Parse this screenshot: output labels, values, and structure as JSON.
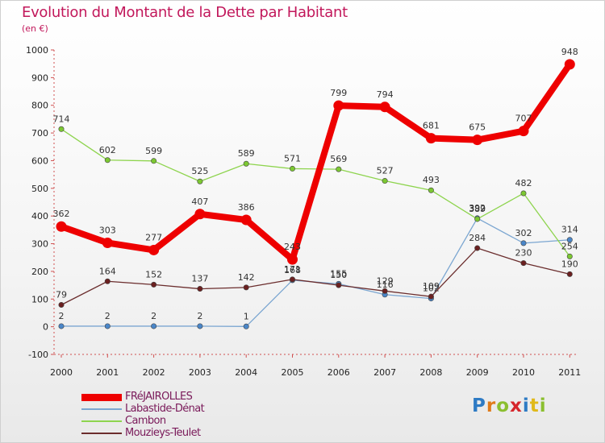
{
  "header": {
    "title": "Evolution du Montant de la Dette par Habitant",
    "subtitle": "(en €)"
  },
  "logo": {
    "text": "Proxiti",
    "letters": [
      {
        "char": "P",
        "color": "#2e7bc4"
      },
      {
        "char": "r",
        "color": "#e07b1a"
      },
      {
        "char": "o",
        "color": "#8bbf2f"
      },
      {
        "char": "x",
        "color": "#d6262c"
      },
      {
        "char": "i",
        "color": "#2e7bc4"
      },
      {
        "char": "t",
        "color": "#e0b91a"
      },
      {
        "char": "i",
        "color": "#8bbf2f"
      }
    ]
  },
  "chart_data": {
    "type": "line",
    "title": "Evolution du Montant de la Dette par Habitant",
    "subtitle": "(en €)",
    "xlabel": "",
    "ylabel": "",
    "x": [
      "2000",
      "2001",
      "2002",
      "2003",
      "2004",
      "2005",
      "2006",
      "2007",
      "2008",
      "2009",
      "2010",
      "2011"
    ],
    "ylim": [
      -100,
      1000
    ],
    "yticks": [
      -100,
      0,
      100,
      200,
      300,
      400,
      500,
      600,
      700,
      800,
      900,
      1000
    ],
    "grid": false,
    "legend_position": "bottom-left",
    "series": [
      {
        "name": "FRéJAIROLLES",
        "color": "#ee0000",
        "marker_color": "#ee0000",
        "bold": true,
        "values": [
          362,
          303,
          277,
          407,
          386,
          243,
          799,
          794,
          681,
          675,
          707,
          948
        ],
        "labels": [
          "362",
          "303",
          "277",
          "407",
          "386",
          "243",
          "799",
          "794",
          "681",
          "675",
          "707",
          "948"
        ]
      },
      {
        "name": "Labastide-Dénat",
        "color": "#7ba6d1",
        "marker_color": "#4a86c8",
        "bold": false,
        "values": [
          2,
          2,
          2,
          2,
          1,
          168,
          155,
          116,
          102,
          392,
          302,
          314
        ],
        "labels": [
          "2",
          "2",
          "2",
          "2",
          "1",
          "168",
          "155",
          "116",
          "102",
          "392",
          "302",
          "314"
        ]
      },
      {
        "name": "Cambon",
        "color": "#8ed44e",
        "marker_color": "#7cc832",
        "bold": false,
        "values": [
          714,
          602,
          599,
          525,
          589,
          571,
          569,
          527,
          493,
          389,
          482,
          254
        ],
        "labels": [
          "714",
          "602",
          "599",
          "525",
          "589",
          "571",
          "569",
          "527",
          "493",
          "389",
          "482",
          "254"
        ]
      },
      {
        "name": "Mouzieys-Teulet",
        "color": "#6b2d2d",
        "marker_color": "#6b2020",
        "bold": false,
        "values": [
          79,
          164,
          152,
          137,
          142,
          171,
          150,
          129,
          109,
          284,
          230,
          190
        ],
        "labels": [
          "79",
          "164",
          "152",
          "137",
          "142",
          "171",
          "150",
          "129",
          "109",
          "284",
          "230",
          "190"
        ]
      }
    ]
  }
}
